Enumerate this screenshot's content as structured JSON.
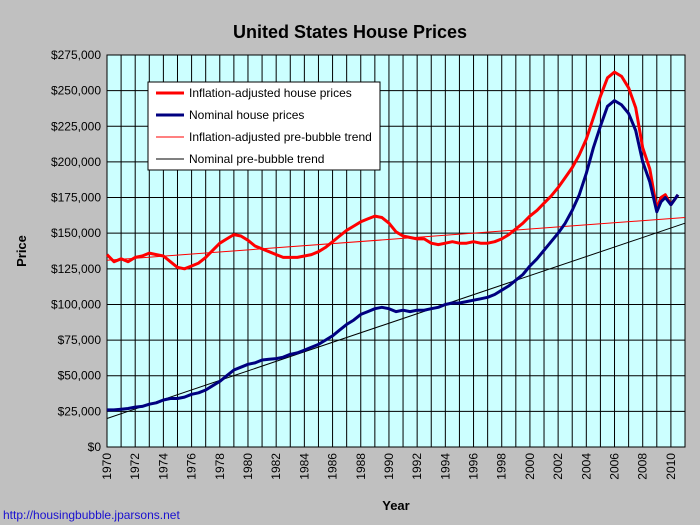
{
  "chart_data": {
    "type": "line",
    "title": "United States House Prices",
    "xlabel": "Year",
    "ylabel": "Price",
    "xlim": [
      1970,
      2011
    ],
    "ylim": [
      0,
      275000
    ],
    "y_ticks": [
      "$0",
      "$25,000",
      "$50,000",
      "$75,000",
      "$100,000",
      "$125,000",
      "$150,000",
      "$175,000",
      "$200,000",
      "$225,000",
      "$250,000",
      "$275,000"
    ],
    "x_ticks": [
      "1970",
      "1972",
      "1974",
      "1976",
      "1978",
      "1980",
      "1982",
      "1984",
      "1986",
      "1988",
      "1990",
      "1992",
      "1994",
      "1996",
      "1998",
      "2000",
      "2002",
      "2004",
      "2006",
      "2008",
      "2010"
    ],
    "grid": true,
    "legend_position": "top-left",
    "series": [
      {
        "name": "Inflation-adjusted house prices",
        "color": "#ff0000",
        "x": [
          1970,
          1970.5,
          1971,
          1971.5,
          1972,
          1972.5,
          1973,
          1973.5,
          1974,
          1974.5,
          1975,
          1975.5,
          1976,
          1976.5,
          1977,
          1977.5,
          1978,
          1978.5,
          1979,
          1979.5,
          1980,
          1980.5,
          1981,
          1981.5,
          1982,
          1982.5,
          1983,
          1983.5,
          1984,
          1984.5,
          1985,
          1985.5,
          1986,
          1986.5,
          1987,
          1987.5,
          1988,
          1988.5,
          1989,
          1989.5,
          1990,
          1990.5,
          1991,
          1991.5,
          1992,
          1992.5,
          1993,
          1993.5,
          1994,
          1994.5,
          1995,
          1995.5,
          1996,
          1996.5,
          1997,
          1997.5,
          1998,
          1998.5,
          1999,
          1999.5,
          2000,
          2000.5,
          2001,
          2001.5,
          2002,
          2002.5,
          2003,
          2003.5,
          2004,
          2004.5,
          2005,
          2005.5,
          2006,
          2006.5,
          2007,
          2007.5,
          2008,
          2008.5,
          2009,
          2009.3,
          2009.6,
          2010,
          2010.5
        ],
        "y": [
          135000,
          130000,
          132000,
          130000,
          133000,
          134000,
          136000,
          135000,
          134000,
          130000,
          126000,
          125000,
          127000,
          129000,
          133000,
          138000,
          143000,
          146000,
          149000,
          148000,
          145000,
          141000,
          139000,
          137000,
          135000,
          133000,
          133000,
          133000,
          134000,
          135000,
          137000,
          140000,
          144000,
          148000,
          152000,
          155000,
          158000,
          160000,
          162000,
          161000,
          157000,
          151000,
          148000,
          147000,
          146000,
          146000,
          143000,
          142000,
          143000,
          144000,
          143000,
          143000,
          144000,
          143000,
          143000,
          144000,
          146000,
          149000,
          153000,
          157000,
          162000,
          166000,
          171000,
          176000,
          182000,
          189000,
          196000,
          205000,
          216000,
          231000,
          246000,
          259000,
          263000,
          260000,
          252000,
          238000,
          210000,
          195000,
          167000,
          175000,
          177000,
          170000,
          177000
        ]
      },
      {
        "name": "Nominal house prices",
        "color": "#000080",
        "x": [
          1970,
          1970.5,
          1971,
          1971.5,
          1972,
          1972.5,
          1973,
          1973.5,
          1974,
          1974.5,
          1975,
          1975.5,
          1976,
          1976.5,
          1977,
          1977.5,
          1978,
          1978.5,
          1979,
          1979.5,
          1980,
          1980.5,
          1981,
          1981.5,
          1982,
          1982.5,
          1983,
          1983.5,
          1984,
          1984.5,
          1985,
          1985.5,
          1986,
          1986.5,
          1987,
          1987.5,
          1988,
          1988.5,
          1989,
          1989.5,
          1990,
          1990.5,
          1991,
          1991.5,
          1992,
          1992.5,
          1993,
          1993.5,
          1994,
          1994.5,
          1995,
          1995.5,
          1996,
          1996.5,
          1997,
          1997.5,
          1998,
          1998.5,
          1999,
          1999.5,
          2000,
          2000.5,
          2001,
          2001.5,
          2002,
          2002.5,
          2003,
          2003.5,
          2004,
          2004.5,
          2005,
          2005.5,
          2006,
          2006.5,
          2007,
          2007.5,
          2008,
          2008.5,
          2009,
          2009.3,
          2009.6,
          2010,
          2010.5
        ],
        "y": [
          26000,
          26000,
          26500,
          27000,
          28000,
          28500,
          30000,
          31000,
          33000,
          34000,
          34000,
          35000,
          37000,
          38000,
          40000,
          43000,
          46000,
          50000,
          54000,
          56000,
          58000,
          59000,
          61000,
          61500,
          62000,
          63000,
          65000,
          66000,
          68000,
          70000,
          72000,
          75000,
          78000,
          82000,
          86000,
          89000,
          93000,
          95000,
          97000,
          98000,
          97000,
          95000,
          96000,
          95000,
          96000,
          96000,
          97000,
          98000,
          100000,
          101000,
          101000,
          102000,
          103000,
          104000,
          105000,
          107000,
          110000,
          113000,
          117000,
          121000,
          127000,
          132000,
          138000,
          144000,
          150000,
          157000,
          166000,
          177000,
          192000,
          210000,
          225000,
          239000,
          243000,
          240000,
          234000,
          222000,
          200000,
          186000,
          165000,
          172000,
          175000,
          170000,
          177000
        ]
      },
      {
        "name": "Inflation-adjusted pre-bubble trend",
        "color": "#ff0000",
        "x": [
          1970,
          2011
        ],
        "y": [
          131000,
          161000
        ]
      },
      {
        "name": "Nominal pre-bubble trend",
        "color": "#000000",
        "x": [
          1970,
          2011
        ],
        "y": [
          20000,
          157000
        ]
      }
    ]
  },
  "footer": {
    "url": "http://housingbubble.jparsons.net"
  }
}
